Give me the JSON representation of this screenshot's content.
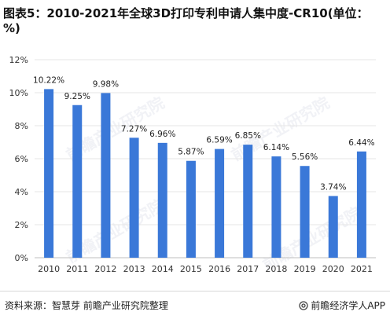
{
  "title": "图表5：2010-2021年全球3D打印专利申请人集中度-CR10(单位：%)",
  "footer": {
    "source": "资料来源：智慧芽 前瞻产业研究院整理",
    "brand": "前瞻经济学人APP",
    "brand_icon": "at-sign-icon"
  },
  "watermark": {
    "text": "前瞻产业研究院"
  },
  "colors": {
    "bar": "#3a78d8",
    "grid": "#e6e6e6",
    "axis": "#bfbfbf"
  },
  "chart_data": {
    "type": "bar",
    "title": "",
    "xlabel": "",
    "ylabel": "",
    "categories": [
      "2010",
      "2011",
      "2012",
      "2013",
      "2014",
      "2015",
      "2016",
      "2017",
      "2018",
      "2019",
      "2020",
      "2021"
    ],
    "values": [
      10.22,
      9.25,
      9.98,
      7.27,
      6.96,
      5.87,
      6.59,
      6.85,
      6.14,
      5.56,
      3.74,
      6.44
    ],
    "value_labels": [
      "10.22%",
      "9.25%",
      "9.98%",
      "7.27%",
      "6.96%",
      "5.87%",
      "6.59%",
      "6.85%",
      "6.14%",
      "5.56%",
      "3.74%",
      "6.44%"
    ],
    "ylim": [
      0,
      12
    ],
    "yticks": [
      0,
      2,
      4,
      6,
      8,
      10,
      12
    ],
    "ytick_labels": [
      "0%",
      "2%",
      "4%",
      "6%",
      "8%",
      "10%",
      "12%"
    ],
    "grid": true,
    "legend": "none"
  }
}
